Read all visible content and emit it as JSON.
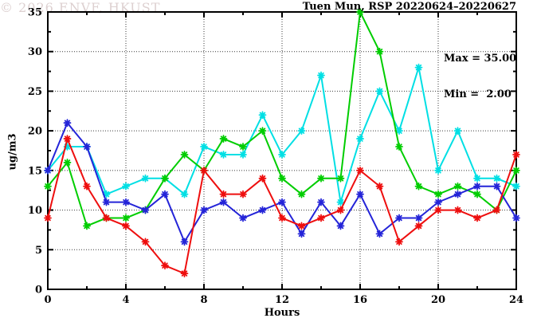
{
  "title": "Tuen Mun, RSP 20220624–20220627",
  "stats": {
    "max_label": "Max = 35.00",
    "min_label": "Min =  2.00"
  },
  "watermark": "© 2026 ENVF, HKUST",
  "chart_data": {
    "type": "line",
    "title": "Tuen Mun, RSP 20220624–20220627",
    "xlabel": "Hours",
    "ylabel": "ug/m3",
    "xlim": [
      0,
      24
    ],
    "ylim": [
      0,
      35
    ],
    "x_ticks": [
      0,
      4,
      8,
      12,
      16,
      20,
      24
    ],
    "x_minor_tick_step": 2,
    "y_ticks": [
      0,
      5,
      10,
      15,
      20,
      25,
      30,
      35
    ],
    "y_minor_tick_step": 2.5,
    "x_gridlines": [
      4,
      8,
      12,
      16,
      20
    ],
    "y_gridlines": [
      5,
      10,
      15,
      20,
      25,
      30
    ],
    "grid": "dotted",
    "legend": "none",
    "marker": "asterisk",
    "annotations": {
      "max": 35.0,
      "min": 2.0
    },
    "x": [
      0,
      1,
      2,
      3,
      4,
      5,
      6,
      7,
      8,
      9,
      10,
      11,
      12,
      13,
      14,
      15,
      16,
      17,
      18,
      19,
      20,
      21,
      22,
      23,
      24
    ],
    "series": [
      {
        "name": "cyan-series",
        "color": "#00dfe4",
        "values": [
          15,
          18,
          18,
          12,
          13,
          14,
          14,
          12,
          18,
          17,
          17,
          22,
          17,
          20,
          27,
          11,
          19,
          25,
          20,
          28,
          15,
          20,
          14,
          14,
          13
        ]
      },
      {
        "name": "green-series",
        "color": "#00cd00",
        "values": [
          13,
          16,
          8,
          9,
          9,
          10,
          14,
          17,
          15,
          19,
          18,
          20,
          14,
          12,
          14,
          14,
          35,
          30,
          18,
          13,
          12,
          13,
          12,
          10,
          15
        ]
      },
      {
        "name": "blue-series",
        "color": "#2424d8",
        "values": [
          15,
          21,
          18,
          11,
          11,
          10,
          12,
          6,
          10,
          11,
          9,
          10,
          11,
          7,
          11,
          8,
          12,
          7,
          9,
          9,
          11,
          12,
          13,
          13,
          9
        ]
      },
      {
        "name": "red-series",
        "color": "#ee0e0e",
        "values": [
          9,
          19,
          13,
          9,
          8,
          6,
          3,
          2,
          15,
          12,
          12,
          14,
          9,
          8,
          9,
          10,
          15,
          13,
          6,
          8,
          10,
          10,
          9,
          10,
          17
        ]
      }
    ]
  }
}
